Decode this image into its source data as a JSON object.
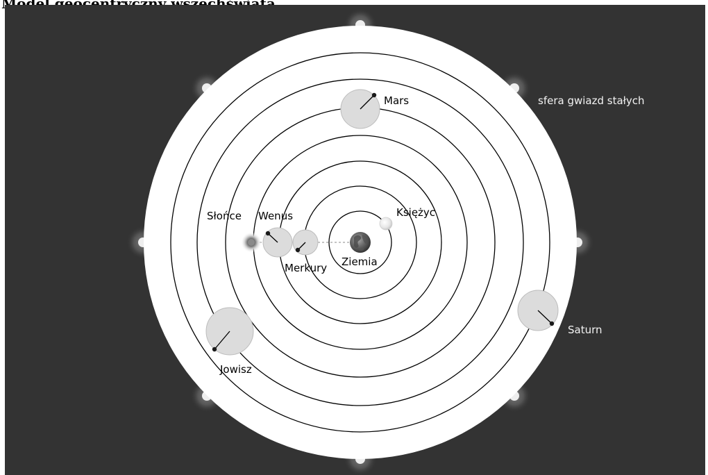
{
  "caption": "Model geocentryczny wszechświata",
  "colors": {
    "background": "#333333",
    "disc": "#ffffff",
    "orbit": "#000000",
    "epicycle": "#dcdcdc",
    "star_glow": "#5e5e5e",
    "star": "#eeeeee",
    "label_on_dark": "#f2f2f2"
  },
  "bodies": {
    "earth": {
      "label": "Ziemia",
      "icon": "earth-globe-icon"
    },
    "moon": {
      "label": "Księżyc",
      "icon": "moon-icon"
    },
    "mercury": {
      "label": "Merkury"
    },
    "venus": {
      "label": "Wenus"
    },
    "sun": {
      "label": "Słońce",
      "icon": "sun-icon"
    },
    "mars": {
      "label": "Mars"
    },
    "jupiter": {
      "label": "Jowisz"
    },
    "saturn": {
      "label": "Saturn"
    },
    "fixed_stars": {
      "label": "sfera gwiazd stałych"
    }
  }
}
